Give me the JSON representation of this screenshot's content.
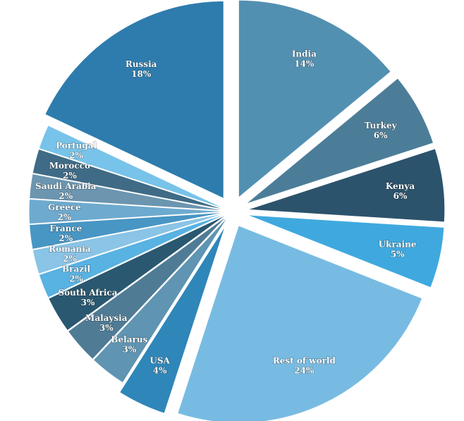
{
  "chart_data": {
    "type": "pie",
    "title": "",
    "slices": [
      {
        "name": "India",
        "value": 14,
        "label": "14%",
        "color": "#5290b1"
      },
      {
        "name": "Turkey",
        "value": 6,
        "label": "6%",
        "color": "#4c7d98"
      },
      {
        "name": "Kenya",
        "value": 6,
        "label": "6%",
        "color": "#2c536c"
      },
      {
        "name": "Ukraine",
        "value": 5,
        "label": "5%",
        "color": "#3fa9df"
      },
      {
        "name": "Rest of world",
        "value": 24,
        "label": "24%",
        "color": "#78bbe2"
      },
      {
        "name": "USA",
        "value": 4,
        "label": "4%",
        "color": "#2f86b9"
      },
      {
        "name": "Belarus",
        "value": 3,
        "label": "3%",
        "color": "#5f94b2"
      },
      {
        "name": "Malaysia",
        "value": 3,
        "label": "3%",
        "color": "#4f7b95"
      },
      {
        "name": "South Africa",
        "value": 3,
        "label": "3%",
        "color": "#2a5870"
      },
      {
        "name": "Brazil",
        "value": 2,
        "label": "2%",
        "color": "#58b2e2"
      },
      {
        "name": "Romania",
        "value": 2,
        "label": "2%",
        "color": "#8ac4e6"
      },
      {
        "name": "France",
        "value": 2,
        "label": "2%",
        "color": "#4896c4"
      },
      {
        "name": "Greece",
        "value": 2,
        "label": "2%",
        "color": "#6eaacf"
      },
      {
        "name": "Saudi Arabia",
        "value": 2,
        "label": "2%",
        "color": "#6c95b0"
      },
      {
        "name": "Morocco",
        "value": 2,
        "label": "2%",
        "color": "#3f6b86"
      },
      {
        "name": "Portugal",
        "value": 2,
        "label": "2%",
        "color": "#78c3ea"
      },
      {
        "name": "Russia",
        "value": 18,
        "label": "18%",
        "color": "#2d7cad"
      }
    ],
    "start": "top, clockwise",
    "legend": "none"
  }
}
